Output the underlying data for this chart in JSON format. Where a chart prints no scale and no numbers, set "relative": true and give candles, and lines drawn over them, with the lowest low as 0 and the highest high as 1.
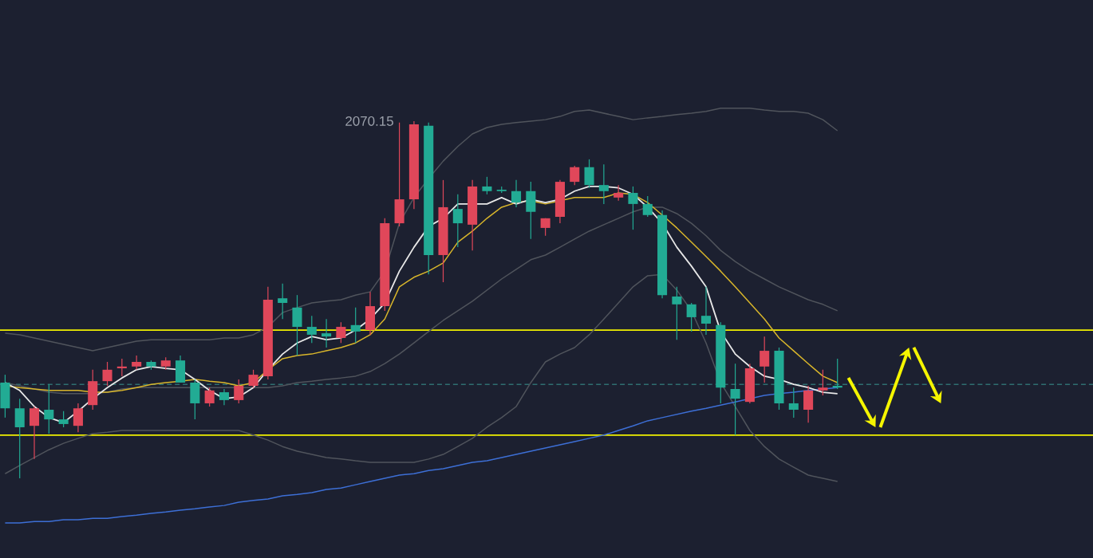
{
  "chart_data": {
    "type": "candlestick",
    "relative": true,
    "categories": [
      null,
      null,
      null,
      null,
      null,
      null,
      null,
      null,
      null,
      null,
      null,
      null,
      null,
      null,
      null,
      null,
      null,
      null,
      null,
      null,
      null,
      null,
      null,
      null,
      null,
      null,
      null,
      null,
      null,
      null,
      null,
      null,
      null,
      null,
      null,
      null,
      null,
      null,
      null,
      null,
      null,
      null,
      null,
      null,
      null,
      null,
      null,
      null,
      null,
      null,
      null,
      null,
      null,
      null,
      null,
      null,
      null,
      null
    ],
    "ohlc": [
      [
        0.268,
        0.29,
        0.17,
        0.196
      ],
      [
        0.196,
        0.223,
        0,
        0.143
      ],
      [
        0.147,
        0.201,
        0.054,
        0.196
      ],
      [
        0.192,
        0.263,
        0.125,
        0.165
      ],
      [
        0.165,
        0.188,
        0.143,
        0.152
      ],
      [
        0.147,
        0.21,
        0.129,
        0.196
      ],
      [
        0.205,
        0.304,
        0.192,
        0.272
      ],
      [
        0.272,
        0.326,
        0.259,
        0.304
      ],
      [
        0.308,
        0.335,
        0.286,
        0.313
      ],
      [
        0.313,
        0.344,
        0.304,
        0.326
      ],
      [
        0.326,
        0.33,
        0.304,
        0.313
      ],
      [
        0.313,
        0.339,
        0.304,
        0.33
      ],
      [
        0.33,
        0.344,
        0.268,
        0.268
      ],
      [
        0.268,
        0.277,
        0.165,
        0.21
      ],
      [
        0.21,
        0.254,
        0.201,
        0.246
      ],
      [
        0.241,
        0.25,
        0.205,
        0.219
      ],
      [
        0.219,
        0.277,
        0.21,
        0.259
      ],
      [
        0.259,
        0.304,
        0.254,
        0.29
      ],
      [
        0.286,
        0.536,
        0.277,
        0.5
      ],
      [
        0.504,
        0.545,
        0.446,
        0.491
      ],
      [
        0.478,
        0.513,
        0.344,
        0.424
      ],
      [
        0.424,
        0.455,
        0.379,
        0.402
      ],
      [
        0.406,
        0.446,
        0.366,
        0.397
      ],
      [
        0.393,
        0.437,
        0.379,
        0.424
      ],
      [
        0.429,
        0.478,
        0.379,
        0.411
      ],
      [
        0.415,
        0.522,
        0.402,
        0.482
      ],
      [
        0.482,
        0.728,
        0.469,
        0.714
      ],
      [
        0.714,
        0.996,
        0.705,
        0.781
      ],
      [
        0.781,
        1,
        0.754,
        0.991
      ],
      [
        0.987,
        0.996,
        0.571,
        0.625
      ],
      [
        0.625,
        0.835,
        0.549,
        0.759
      ],
      [
        0.754,
        0.795,
        0.647,
        0.714
      ],
      [
        0.71,
        0.835,
        0.638,
        0.817
      ],
      [
        0.817,
        0.844,
        0.795,
        0.804
      ],
      [
        0.808,
        0.817,
        0.799,
        0.804
      ],
      [
        0.804,
        0.835,
        0.759,
        0.772
      ],
      [
        0.804,
        0.83,
        0.67,
        0.746
      ],
      [
        0.701,
        0.728,
        0.679,
        0.728
      ],
      [
        0.732,
        0.835,
        0.714,
        0.83
      ],
      [
        0.83,
        0.875,
        0.821,
        0.871
      ],
      [
        0.871,
        0.893,
        0.813,
        0.821
      ],
      [
        0.821,
        0.879,
        0.768,
        0.804
      ],
      [
        0.786,
        0.821,
        0.777,
        0.799
      ],
      [
        0.799,
        0.817,
        0.696,
        0.768
      ],
      [
        0.768,
        0.79,
        0.732,
        0.737
      ],
      [
        0.737,
        0.75,
        0.504,
        0.513
      ],
      [
        0.509,
        0.536,
        0.388,
        0.487
      ],
      [
        0.487,
        0.491,
        0.411,
        0.451
      ],
      [
        0.455,
        0.536,
        0.402,
        0.433
      ],
      [
        0.429,
        0.437,
        0.21,
        0.254
      ],
      [
        0.25,
        0.321,
        0.121,
        0.223
      ],
      [
        0.214,
        0.321,
        0.21,
        0.308
      ],
      [
        0.313,
        0.397,
        0.268,
        0.357
      ],
      [
        0.357,
        0.366,
        0.192,
        0.21
      ],
      [
        0.21,
        0.254,
        0.17,
        0.192
      ],
      [
        0.192,
        0.259,
        0.156,
        0.246
      ],
      [
        0.246,
        0.304,
        0.232,
        0.254
      ],
      [
        0.259,
        0.335,
        0.25,
        0.254
      ]
    ],
    "series": [
      {
        "type": "line",
        "color": "#50545c",
        "values": [
          0.406,
          0.402,
          0.393,
          0.384,
          0.375,
          0.366,
          0.357,
          0.366,
          0.375,
          0.384,
          0.388,
          0.388,
          0.388,
          0.388,
          0.388,
          0.393,
          0.393,
          0.402,
          0.424,
          0.464,
          0.478,
          0.491,
          0.496,
          0.5,
          0.513,
          0.522,
          0.58,
          0.714,
          0.786,
          0.839,
          0.888,
          0.929,
          0.964,
          0.982,
          0.991,
          0.996,
          1.0,
          1.004,
          1.013,
          1.027,
          1.031,
          1.022,
          1.013,
          1.004,
          1.009,
          1.013,
          1.018,
          1.022,
          1.027,
          1.036,
          1.036,
          1.036,
          1.031,
          1.027,
          1.027,
          1.022,
          1.004,
          0.973
        ]
      },
      {
        "type": "line",
        "color": "#50545c",
        "values": [
          0.268,
          0.259,
          0.25,
          0.241,
          0.237,
          0.237,
          0.237,
          0.241,
          0.25,
          0.254,
          0.254,
          0.254,
          0.254,
          0.254,
          0.254,
          0.254,
          0.254,
          0.254,
          0.254,
          0.259,
          0.268,
          0.272,
          0.277,
          0.281,
          0.286,
          0.299,
          0.321,
          0.348,
          0.379,
          0.411,
          0.442,
          0.469,
          0.496,
          0.527,
          0.558,
          0.585,
          0.612,
          0.625,
          0.647,
          0.67,
          0.692,
          0.71,
          0.728,
          0.746,
          0.759,
          0.759,
          0.741,
          0.714,
          0.679,
          0.638,
          0.607,
          0.58,
          0.558,
          0.536,
          0.518,
          0.5,
          0.487,
          0.469
        ]
      },
      {
        "type": "line",
        "color": "#50545c",
        "values": [
          0.013,
          0.036,
          0.058,
          0.08,
          0.098,
          0.112,
          0.125,
          0.129,
          0.134,
          0.134,
          0.134,
          0.134,
          0.134,
          0.134,
          0.134,
          0.134,
          0.134,
          0.121,
          0.107,
          0.089,
          0.076,
          0.067,
          0.058,
          0.054,
          0.049,
          0.045,
          0.045,
          0.045,
          0.045,
          0.054,
          0.067,
          0.089,
          0.112,
          0.143,
          0.17,
          0.201,
          0.268,
          0.326,
          0.348,
          0.366,
          0.402,
          0.446,
          0.491,
          0.536,
          0.567,
          0.571,
          0.527,
          0.469,
          0.379,
          0.268,
          0.201,
          0.134,
          0.089,
          0.054,
          0.031,
          0.009,
          0,
          -0.009
        ]
      },
      {
        "type": "line",
        "color": "#3d6fd6",
        "values": [
          -0.125,
          -0.125,
          -0.121,
          -0.121,
          -0.116,
          -0.116,
          -0.112,
          -0.112,
          -0.107,
          -0.103,
          -0.098,
          -0.094,
          -0.089,
          -0.085,
          -0.08,
          -0.076,
          -0.067,
          -0.062,
          -0.058,
          -0.049,
          -0.045,
          -0.04,
          -0.031,
          -0.027,
          -0.018,
          -0.009,
          0,
          0.009,
          0.013,
          0.022,
          0.027,
          0.036,
          0.045,
          0.049,
          0.058,
          0.067,
          0.076,
          0.085,
          0.094,
          0.103,
          0.112,
          0.121,
          0.134,
          0.147,
          0.161,
          0.17,
          0.179,
          0.188,
          0.196,
          0.205,
          0.214,
          0.223,
          0.232,
          0.237,
          0.241,
          0.246,
          0.25,
          0.254
        ]
      },
      {
        "type": "line",
        "color": "#d9b62b",
        "values": [
          0.259,
          0.254,
          0.25,
          0.246,
          0.246,
          0.246,
          0.241,
          0.241,
          0.246,
          0.254,
          0.263,
          0.268,
          0.272,
          0.277,
          0.272,
          0.268,
          0.259,
          0.268,
          0.304,
          0.335,
          0.344,
          0.348,
          0.357,
          0.366,
          0.379,
          0.402,
          0.446,
          0.536,
          0.563,
          0.58,
          0.603,
          0.661,
          0.692,
          0.728,
          0.759,
          0.772,
          0.777,
          0.768,
          0.777,
          0.786,
          0.786,
          0.786,
          0.799,
          0.795,
          0.772,
          0.737,
          0.701,
          0.661,
          0.621,
          0.58,
          0.536,
          0.491,
          0.446,
          0.393,
          0.357,
          0.321,
          0.286,
          0.268
        ]
      },
      {
        "type": "line",
        "color": "#e8e8e8",
        "values": [
          0.268,
          0.246,
          0.201,
          0.17,
          0.156,
          0.188,
          0.223,
          0.254,
          0.281,
          0.304,
          0.313,
          0.308,
          0.304,
          0.277,
          0.246,
          0.223,
          0.228,
          0.254,
          0.304,
          0.348,
          0.379,
          0.397,
          0.388,
          0.393,
          0.415,
          0.446,
          0.491,
          0.58,
          0.647,
          0.705,
          0.728,
          0.768,
          0.768,
          0.768,
          0.786,
          0.768,
          0.781,
          0.772,
          0.781,
          0.804,
          0.817,
          0.817,
          0.813,
          0.795,
          0.759,
          0.714,
          0.647,
          0.594,
          0.536,
          0.411,
          0.348,
          0.313,
          0.286,
          0.277,
          0.263,
          0.254,
          0.241,
          0.237
        ]
      }
    ],
    "ref_lines": [
      {
        "axis": "y",
        "value": 0.415,
        "color": "#f0f000",
        "line_style": "solid"
      },
      {
        "axis": "y",
        "value": 0.121,
        "color": "#f0f000",
        "line_style": "solid"
      },
      {
        "axis": "y",
        "value": 0.263,
        "color": "#2f6f70",
        "line_style": "dashed"
      }
    ],
    "annotations": [
      "2070.15"
    ]
  }
}
